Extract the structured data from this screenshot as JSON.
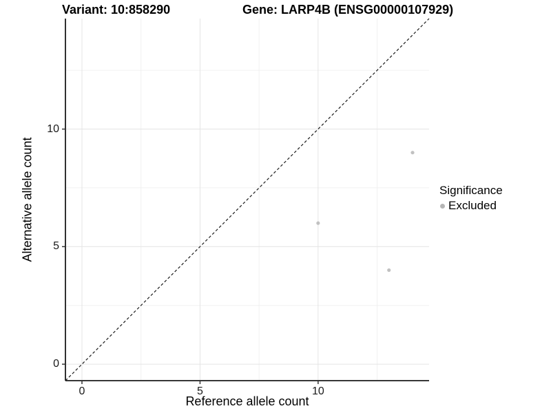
{
  "titles": {
    "variant": "Variant: 10:858290",
    "gene": "Gene: LARP4B (ENSG00000107929)"
  },
  "chart_data": {
    "type": "scatter",
    "title_left": "Variant: 10:858290",
    "title_right": "Gene: LARP4B (ENSG00000107929)",
    "xlabel": "Reference allele count",
    "ylabel": "Alternative allele count",
    "xlim": [
      -0.7,
      14.7
    ],
    "ylim": [
      -0.7,
      14.7
    ],
    "x_major_ticks": [
      0,
      5,
      10
    ],
    "y_major_ticks": [
      0,
      5,
      10
    ],
    "x_minor_ticks": [
      2.5,
      7.5,
      12.5
    ],
    "y_minor_ticks": [
      2.5,
      7.5,
      12.5
    ],
    "grid": "major and minor, light gray on white",
    "series": [
      {
        "name": "Excluded",
        "point_color": "#c1c1c1",
        "points": [
          {
            "x": 10,
            "y": 6
          },
          {
            "x": 13,
            "y": 4
          },
          {
            "x": 14,
            "y": 9
          }
        ]
      }
    ],
    "reference_line": {
      "equation": "y = x",
      "style": "dashed",
      "color": "#1a1a1a",
      "from": [
        -0.7,
        -0.7
      ],
      "to": [
        14.7,
        14.7
      ]
    },
    "legend": {
      "title": "Significance",
      "position": "right",
      "items": [
        {
          "label": "Excluded",
          "color": "#b5b5b5"
        }
      ]
    }
  },
  "colors": {
    "background": "#ffffff",
    "grid_major": "#e4e4e4",
    "grid_minor": "#f0f0f0",
    "axis_line": "#1a1a1a",
    "tick_mark": "#333333",
    "tick_label": "#1a1a1a",
    "point": "#c1c1c1",
    "legend_dot": "#b5b5b5"
  }
}
